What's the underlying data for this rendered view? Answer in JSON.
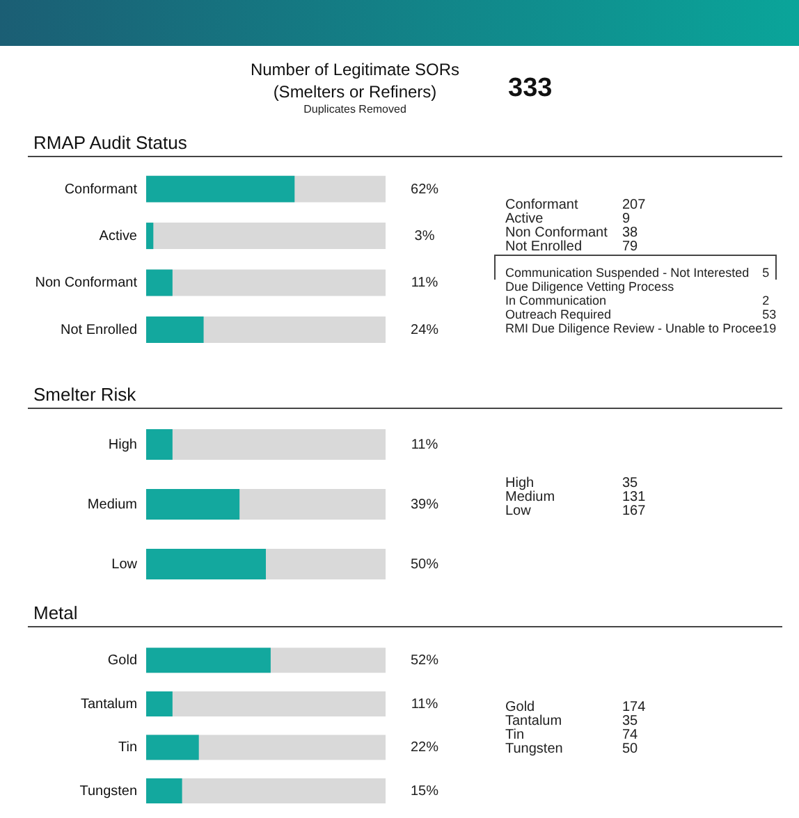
{
  "chart_data": [
    {
      "type": "other",
      "title": "Number of Legitimate SORs\n(Smelters or Refiners)",
      "subtitle": "Duplicates Removed",
      "annotations": [
        "333"
      ]
    },
    {
      "type": "bar",
      "orientation": "horizontal",
      "title": "RMAP Audit Status",
      "categories": [
        "Conformant",
        "Active",
        "Non Conformant",
        "Not Enrolled"
      ],
      "values": [
        62,
        3,
        11,
        24
      ],
      "value_labels": [
        "62%",
        "3%",
        "11%",
        "24%"
      ],
      "color": "#13a89e",
      "xlim": [
        0,
        100
      ],
      "tick_labels": "y"
    },
    {
      "type": "other",
      "categories": [
        "Conformant",
        "Active",
        "Non Conformant",
        "Not Enrolled"
      ],
      "values": [
        207,
        9,
        38,
        79
      ],
      "data_labels": true
    },
    {
      "type": "other",
      "categories": [
        "Communication Suspended - Not Interested",
        "Due Diligence Vetting Process",
        "In Communication",
        "Outreach Required",
        "RMI Due Diligence Review - Unable to Procee"
      ],
      "values": [
        5,
        null,
        2,
        53,
        19
      ],
      "data_labels": true
    },
    {
      "type": "bar",
      "orientation": "horizontal",
      "title": "Smelter Risk",
      "categories": [
        "High",
        "Medium",
        "Low"
      ],
      "values": [
        11,
        39,
        50
      ],
      "value_labels": [
        "11%",
        "39%",
        "50%"
      ],
      "color": "#13a89e",
      "xlim": [
        0,
        100
      ],
      "tick_labels": "y"
    },
    {
      "type": "other",
      "categories": [
        "High",
        "Medium",
        "Low"
      ],
      "values": [
        35,
        131,
        167
      ],
      "data_labels": true
    },
    {
      "type": "bar",
      "orientation": "horizontal",
      "title": "Metal",
      "categories": [
        "Gold",
        "Tantalum",
        "Tin",
        "Tungsten"
      ],
      "values": [
        52,
        11,
        22,
        15
      ],
      "value_labels": [
        "52%",
        "11%",
        "22%",
        "15%"
      ],
      "color": "#13a89e",
      "xlim": [
        0,
        100
      ],
      "tick_labels": "y"
    },
    {
      "type": "other",
      "categories": [
        "Gold",
        "Tantalum",
        "Tin",
        "Tungsten"
      ],
      "values": [
        174,
        35,
        74,
        50
      ],
      "data_labels": true
    }
  ]
}
